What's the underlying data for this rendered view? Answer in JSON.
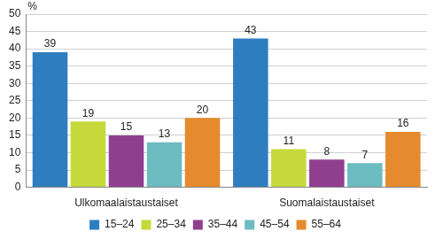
{
  "chart_data": {
    "type": "bar",
    "ylabel": "%",
    "categories": [
      "Ulkomaalaistaustaiset",
      "Suomalaistaustaiset"
    ],
    "series": [
      {
        "name": "15–24",
        "color": "#2e7ebf",
        "values": [
          39,
          43
        ]
      },
      {
        "name": "25–34",
        "color": "#c5d93a",
        "values": [
          19,
          11
        ]
      },
      {
        "name": "35–44",
        "color": "#8f3f8e",
        "values": [
          15,
          8
        ]
      },
      {
        "name": "45–54",
        "color": "#6cbcc1",
        "values": [
          13,
          7
        ]
      },
      {
        "name": "55–64",
        "color": "#e68a2e",
        "values": [
          20,
          16
        ]
      }
    ],
    "ylim": [
      0,
      50
    ],
    "yticks": [
      0,
      5,
      10,
      15,
      20,
      25,
      30,
      35,
      40,
      45,
      50
    ],
    "grid": true,
    "legend": "bottom",
    "data_labels": true
  }
}
